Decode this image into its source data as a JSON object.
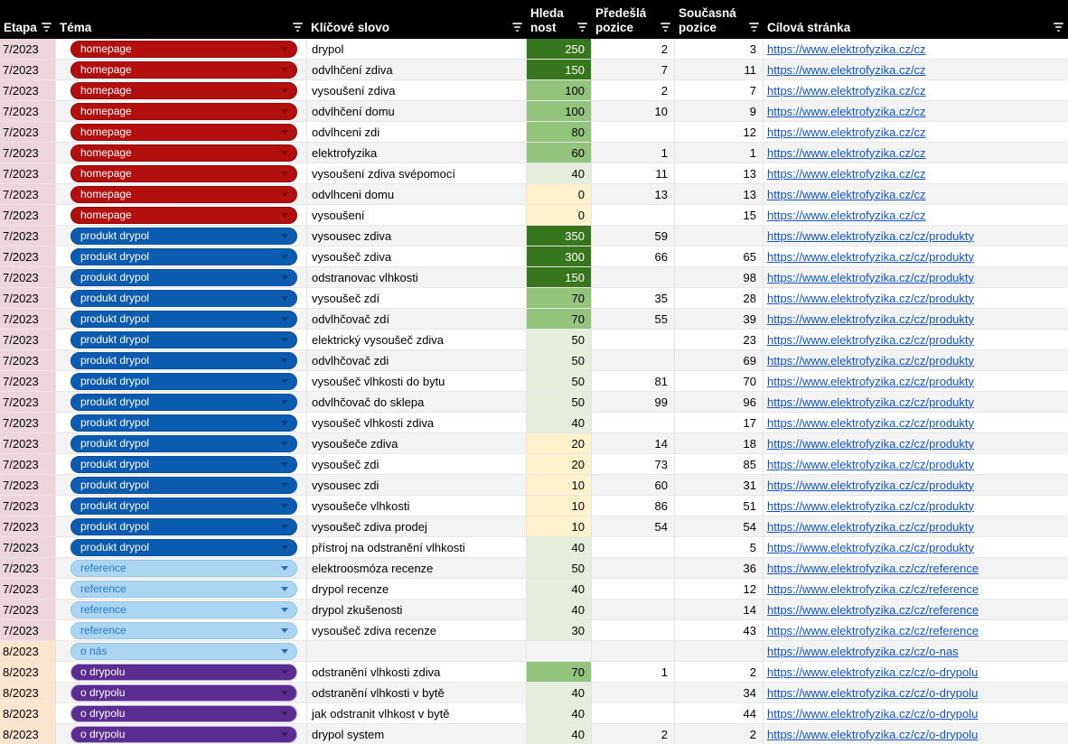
{
  "columns": [
    {
      "key": "etapa",
      "lines": [
        "Etapa"
      ]
    },
    {
      "key": "tema",
      "lines": [
        "Téma"
      ]
    },
    {
      "key": "klicove-slovo",
      "lines": [
        "Klíčové slovo"
      ]
    },
    {
      "key": "hledanost",
      "lines": [
        "Hleda",
        "nost"
      ]
    },
    {
      "key": "predesla-pozice",
      "lines": [
        "Předešlá",
        "pozice"
      ]
    },
    {
      "key": "soucasna-pozice",
      "lines": [
        "Současná",
        "pozice"
      ]
    },
    {
      "key": "cilova-stranka",
      "lines": [
        "Cílová stránka"
      ]
    }
  ],
  "header_colors": {
    "bg": "#000000",
    "text": "#ffffff",
    "filter_icon": "#c9c9c9"
  },
  "etapa_colors": {
    "7/2023": "#ecd6dc",
    "8/2023": "#fce5cd"
  },
  "themes": {
    "homepage": {
      "label": "homepage",
      "bg": "#b20f0e",
      "border": "#8f0b0b",
      "text": "#ffffff",
      "arrow": "#7d0a0a"
    },
    "produkt drypol": {
      "label": "produkt drypol",
      "bg": "#0b5bb0",
      "border": "#0a4f99",
      "text": "#ffffff",
      "arrow": "#06407c"
    },
    "reference": {
      "label": "reference",
      "bg": "#abd5f1",
      "border": "#93c6e9",
      "text": "#2879c5",
      "arrow": "#2a6db7"
    },
    "o nás": {
      "label": "o nás",
      "bg": "#abd5f1",
      "border": "#93c6e9",
      "text": "#2879c5",
      "arrow": "#2a6db7"
    },
    "o drypolu": {
      "label": "o drypolu",
      "bg": "#5c2d90",
      "border": "#b9a6d8",
      "text": "#ffffff",
      "arrow": "#3c1c61"
    }
  },
  "heatmap": {
    "dark": {
      "bg": "#38761d",
      "text": "#ffffff"
    },
    "medium": {
      "bg": "#93c47d",
      "text": "#000000"
    },
    "pale": {
      "bg": "#e4eeda",
      "text": "#000000"
    },
    "cream": {
      "bg": "#fdf2cc",
      "text": "#000000"
    }
  },
  "heatmap_thresholds": {
    "dark_min": 150,
    "medium_min": 60,
    "pale_min": 30
  },
  "link_color": "#1155cc",
  "stripe_color": "#f3f3f3",
  "rows": [
    {
      "etapa": "7/2023",
      "tema": "homepage",
      "keyword": "drypol",
      "hledanost": 250,
      "predesla": 2,
      "soucasna": 3,
      "url": "https://www.elektrofyzika.cz/cz"
    },
    {
      "etapa": "7/2023",
      "tema": "homepage",
      "keyword": "odvlhčení zdiva",
      "hledanost": 150,
      "predesla": 7,
      "soucasna": 11,
      "url": "https://www.elektrofyzika.cz/cz"
    },
    {
      "etapa": "7/2023",
      "tema": "homepage",
      "keyword": "vysoušení zdiva",
      "hledanost": 100,
      "predesla": 2,
      "soucasna": 7,
      "url": "https://www.elektrofyzika.cz/cz"
    },
    {
      "etapa": "7/2023",
      "tema": "homepage",
      "keyword": "odvlhčení domu",
      "hledanost": 100,
      "predesla": 10,
      "soucasna": 9,
      "url": "https://www.elektrofyzika.cz/cz"
    },
    {
      "etapa": "7/2023",
      "tema": "homepage",
      "keyword": "odvlhceni zdi",
      "hledanost": 80,
      "predesla": null,
      "soucasna": 12,
      "url": "https://www.elektrofyzika.cz/cz"
    },
    {
      "etapa": "7/2023",
      "tema": "homepage",
      "keyword": "elektrofyzika",
      "hledanost": 60,
      "predesla": 1,
      "soucasna": 1,
      "url": "https://www.elektrofyzika.cz/cz"
    },
    {
      "etapa": "7/2023",
      "tema": "homepage",
      "keyword": "vysoušení zdiva svépomocí",
      "hledanost": 40,
      "predesla": 11,
      "soucasna": 13,
      "url": "https://www.elektrofyzika.cz/cz"
    },
    {
      "etapa": "7/2023",
      "tema": "homepage",
      "keyword": "odvlhceni domu",
      "hledanost": 0,
      "predesla": 13,
      "soucasna": 13,
      "url": "https://www.elektrofyzika.cz/cz"
    },
    {
      "etapa": "7/2023",
      "tema": "homepage",
      "keyword": "vysoušení",
      "hledanost": 0,
      "predesla": null,
      "soucasna": 15,
      "url": "https://www.elektrofyzika.cz/cz"
    },
    {
      "etapa": "7/2023",
      "tema": "produkt drypol",
      "keyword": "vysousec zdiva",
      "hledanost": 350,
      "predesla": 59,
      "soucasna": null,
      "url": "https://www.elektrofyzika.cz/cz/produkty"
    },
    {
      "etapa": "7/2023",
      "tema": "produkt drypol",
      "keyword": "vysoušeč zdiva",
      "hledanost": 300,
      "predesla": 66,
      "soucasna": 65,
      "url": "https://www.elektrofyzika.cz/cz/produkty"
    },
    {
      "etapa": "7/2023",
      "tema": "produkt drypol",
      "keyword": "odstranovac vlhkosti",
      "hledanost": 150,
      "predesla": null,
      "soucasna": 98,
      "url": "https://www.elektrofyzika.cz/cz/produkty"
    },
    {
      "etapa": "7/2023",
      "tema": "produkt drypol",
      "keyword": "vysoušeč zdí",
      "hledanost": 70,
      "predesla": 35,
      "soucasna": 28,
      "url": "https://www.elektrofyzika.cz/cz/produkty"
    },
    {
      "etapa": "7/2023",
      "tema": "produkt drypol",
      "keyword": "odvlhčovač zdí",
      "hledanost": 70,
      "predesla": 55,
      "soucasna": 39,
      "url": "https://www.elektrofyzika.cz/cz/produkty"
    },
    {
      "etapa": "7/2023",
      "tema": "produkt drypol",
      "keyword": "elektrický vysoušeč zdiva",
      "hledanost": 50,
      "predesla": null,
      "soucasna": 23,
      "url": "https://www.elektrofyzika.cz/cz/produkty"
    },
    {
      "etapa": "7/2023",
      "tema": "produkt drypol",
      "keyword": "odvlhčovač zdi",
      "hledanost": 50,
      "predesla": null,
      "soucasna": 69,
      "url": "https://www.elektrofyzika.cz/cz/produkty"
    },
    {
      "etapa": "7/2023",
      "tema": "produkt drypol",
      "keyword": "vysoušeč vlhkosti do bytu",
      "hledanost": 50,
      "predesla": 81,
      "soucasna": 70,
      "url": "https://www.elektrofyzika.cz/cz/produkty"
    },
    {
      "etapa": "7/2023",
      "tema": "produkt drypol",
      "keyword": "odvlhčovač do sklepa",
      "hledanost": 50,
      "predesla": 99,
      "soucasna": 96,
      "url": "https://www.elektrofyzika.cz/cz/produkty"
    },
    {
      "etapa": "7/2023",
      "tema": "produkt drypol",
      "keyword": "vysoušeč vlhkosti zdiva",
      "hledanost": 40,
      "predesla": null,
      "soucasna": 17,
      "url": "https://www.elektrofyzika.cz/cz/produkty"
    },
    {
      "etapa": "7/2023",
      "tema": "produkt drypol",
      "keyword": "vysoušeče zdiva",
      "hledanost": 20,
      "predesla": 14,
      "soucasna": 18,
      "url": "https://www.elektrofyzika.cz/cz/produkty"
    },
    {
      "etapa": "7/2023",
      "tema": "produkt drypol",
      "keyword": "vysoušeč zdi",
      "hledanost": 20,
      "predesla": 73,
      "soucasna": 85,
      "url": "https://www.elektrofyzika.cz/cz/produkty"
    },
    {
      "etapa": "7/2023",
      "tema": "produkt drypol",
      "keyword": "vysousec zdi",
      "hledanost": 10,
      "predesla": 60,
      "soucasna": 31,
      "url": "https://www.elektrofyzika.cz/cz/produkty"
    },
    {
      "etapa": "7/2023",
      "tema": "produkt drypol",
      "keyword": "vysoušeče vlhkosti",
      "hledanost": 10,
      "predesla": 86,
      "soucasna": 51,
      "url": "https://www.elektrofyzika.cz/cz/produkty"
    },
    {
      "etapa": "7/2023",
      "tema": "produkt drypol",
      "keyword": "vysoušeč zdiva prodej",
      "hledanost": 10,
      "predesla": 54,
      "soucasna": 54,
      "url": "https://www.elektrofyzika.cz/cz/produkty"
    },
    {
      "etapa": "7/2023",
      "tema": "produkt drypol",
      "keyword": "přístroj na odstranění vlhkosti",
      "hledanost": 40,
      "predesla": null,
      "soucasna": 5,
      "url": "https://www.elektrofyzika.cz/cz/produkty"
    },
    {
      "etapa": "7/2023",
      "tema": "reference",
      "keyword": "elektroosmóza recenze",
      "hledanost": 50,
      "predesla": null,
      "soucasna": 36,
      "url": "https://www.elektrofyzika.cz/cz/reference"
    },
    {
      "etapa": "7/2023",
      "tema": "reference",
      "keyword": "drypol recenze",
      "hledanost": 40,
      "predesla": null,
      "soucasna": 12,
      "url": "https://www.elektrofyzika.cz/cz/reference"
    },
    {
      "etapa": "7/2023",
      "tema": "reference",
      "keyword": "drypol zkušenosti",
      "hledanost": 40,
      "predesla": null,
      "soucasna": 14,
      "url": "https://www.elektrofyzika.cz/cz/reference"
    },
    {
      "etapa": "7/2023",
      "tema": "reference",
      "keyword": "vysoušeč zdiva recenze",
      "hledanost": 30,
      "predesla": null,
      "soucasna": 43,
      "url": "https://www.elektrofyzika.cz/cz/reference"
    },
    {
      "etapa": "8/2023",
      "tema": "o nás",
      "keyword": null,
      "hledanost": null,
      "predesla": null,
      "soucasna": null,
      "url": "https://www.elektrofyzika.cz/cz/o-nas"
    },
    {
      "etapa": "8/2023",
      "tema": "o drypolu",
      "keyword": "odstranění vlhkosti zdiva",
      "hledanost": 70,
      "predesla": 1,
      "soucasna": 2,
      "url": "https://www.elektrofyzika.cz/cz/o-drypolu"
    },
    {
      "etapa": "8/2023",
      "tema": "o drypolu",
      "keyword": "odstranění vlhkosti v bytě",
      "hledanost": 40,
      "predesla": null,
      "soucasna": 34,
      "url": "https://www.elektrofyzika.cz/cz/o-drypolu"
    },
    {
      "etapa": "8/2023",
      "tema": "o drypolu",
      "keyword": "jak odstranit vlhkost v bytě",
      "hledanost": 40,
      "predesla": null,
      "soucasna": 44,
      "url": "https://www.elektrofyzika.cz/cz/o-drypolu"
    },
    {
      "etapa": "8/2023",
      "tema": "o drypolu",
      "keyword": "drypol system",
      "hledanost": 40,
      "predesla": 2,
      "soucasna": 2,
      "url": "https://www.elektrofyzika.cz/cz/o-drypolu"
    }
  ]
}
